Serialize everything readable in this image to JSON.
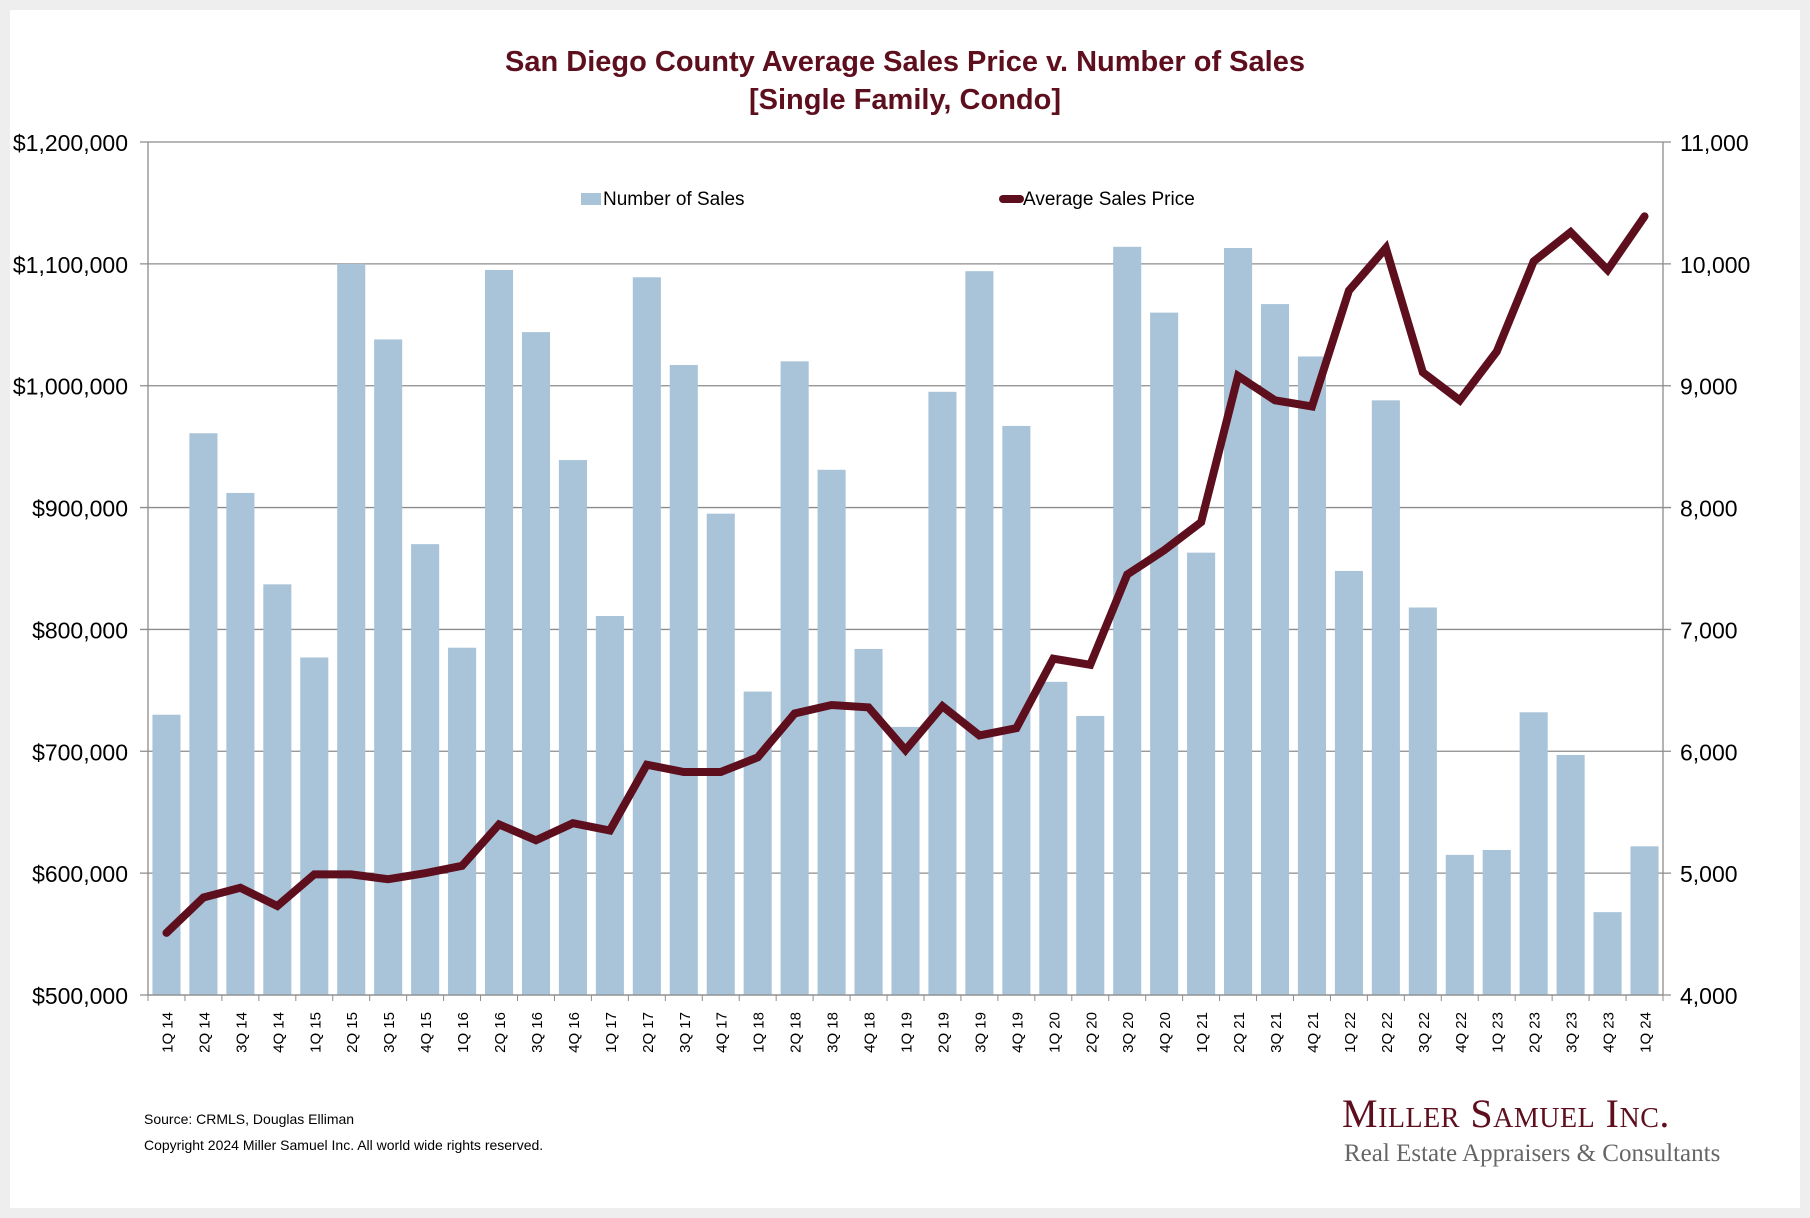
{
  "chart_data": {
    "type": "bar+line",
    "title": "San Diego County Average Sales Price v. Number of Sales",
    "subtitle": "[Single Family, Condo]",
    "xlabel": "",
    "ylabel_left": "",
    "ylabel_right": "",
    "legend_position": "top-center",
    "grid": true,
    "categories": [
      "1Q 14",
      "2Q 14",
      "3Q 14",
      "4Q 14",
      "1Q 15",
      "2Q 15",
      "3Q 15",
      "4Q 15",
      "1Q 16",
      "2Q 16",
      "3Q 16",
      "4Q 16",
      "1Q 17",
      "2Q 17",
      "3Q 17",
      "4Q 17",
      "1Q 18",
      "2Q 18",
      "3Q 18",
      "4Q 18",
      "1Q 19",
      "2Q 19",
      "3Q 19",
      "4Q 19",
      "1Q 20",
      "2Q 20",
      "3Q 20",
      "4Q 20",
      "1Q 21",
      "2Q 21",
      "3Q 21",
      "4Q 21",
      "1Q 22",
      "2Q 22",
      "3Q 22",
      "4Q 22",
      "1Q 23",
      "2Q 23",
      "3Q 23",
      "4Q 23",
      "1Q 24"
    ],
    "series": [
      {
        "name": "Number of Sales",
        "type": "bar",
        "axis": "right",
        "color": "#a9c4d9",
        "values": [
          6300,
          8610,
          8120,
          7370,
          6770,
          10000,
          9380,
          7700,
          6850,
          9950,
          9440,
          8390,
          7110,
          9890,
          9170,
          7950,
          6490,
          9200,
          8310,
          6840,
          6200,
          8950,
          9940,
          8670,
          6570,
          6290,
          10140,
          9600,
          7630,
          10130,
          9670,
          9240,
          7480,
          8880,
          7180,
          5150,
          5190,
          6320,
          5970,
          4680,
          5220
        ]
      },
      {
        "name": "Average Sales Price",
        "type": "line",
        "axis": "left",
        "color": "#5e0f1e",
        "values": [
          551000,
          580000,
          588000,
          573000,
          599000,
          599000,
          595000,
          600000,
          606000,
          640000,
          627000,
          641000,
          635000,
          689000,
          683000,
          683000,
          695000,
          731000,
          738000,
          736000,
          701000,
          737000,
          713000,
          719000,
          776000,
          771000,
          845000,
          865000,
          888000,
          1008000,
          988000,
          983000,
          1078000,
          1113000,
          1011000,
          988000,
          1028000,
          1102000,
          1126000,
          1095000,
          1139000
        ]
      }
    ],
    "left_axis": {
      "range": [
        500000,
        1200000
      ],
      "ticks": [
        "$500,000",
        "$600,000",
        "$700,000",
        "$800,000",
        "$900,000",
        "$1,000,000",
        "$1,100,000",
        "$1,200,000"
      ]
    },
    "right_axis": {
      "range": [
        4000,
        11000
      ],
      "ticks": [
        "4,000",
        "5,000",
        "6,000",
        "7,000",
        "8,000",
        "9,000",
        "10,000",
        "11,000"
      ]
    }
  },
  "footer": {
    "source": "Source: CRMLS, Douglas Elliman",
    "copyright": "Copyright 2024 Miller Samuel Inc.  All world wide rights reserved."
  },
  "logo": {
    "name": "Miller Samuel Inc.",
    "tagline": "Real Estate Appraisers & Consultants"
  }
}
